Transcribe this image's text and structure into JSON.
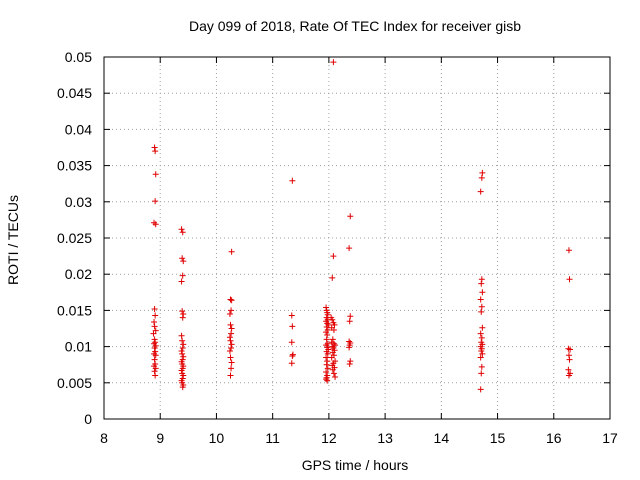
{
  "chart_data": {
    "type": "scatter",
    "title": "Day 099 of 2018, Rate Of TEC Index for receiver gisb",
    "xlabel": "GPS time / hours",
    "ylabel": "ROTI / TECUs",
    "xlim": [
      8,
      17
    ],
    "ylim": [
      0,
      0.05
    ],
    "grid": true,
    "x_ticks": [
      8,
      9,
      10,
      11,
      12,
      13,
      14,
      15,
      16,
      17
    ],
    "x_tick_labels": [
      "8",
      "9",
      "10",
      "11",
      "12",
      "13",
      "14",
      "15",
      "16",
      "17"
    ],
    "y_ticks": [
      0,
      0.005,
      0.01,
      0.015,
      0.02,
      0.025,
      0.03,
      0.035,
      0.04,
      0.045,
      0.05
    ],
    "y_tick_labels": [
      "0",
      "0.005",
      "0.01",
      "0.015",
      "0.02",
      "0.025",
      "0.03",
      "0.035",
      "0.04",
      "0.045",
      "0.05"
    ],
    "marker": "+",
    "color": "#e00000",
    "points": [
      [
        8.9,
        0.0375
      ],
      [
        8.91,
        0.037
      ],
      [
        8.92,
        0.0338
      ],
      [
        8.91,
        0.0301
      ],
      [
        8.89,
        0.0271
      ],
      [
        8.92,
        0.0269
      ],
      [
        8.9,
        0.0152
      ],
      [
        8.91,
        0.0143
      ],
      [
        8.89,
        0.0134
      ],
      [
        8.9,
        0.0128
      ],
      [
        8.92,
        0.0122
      ],
      [
        8.88,
        0.0118
      ],
      [
        8.9,
        0.011
      ],
      [
        8.91,
        0.0106
      ],
      [
        8.89,
        0.0104
      ],
      [
        8.92,
        0.0101
      ],
      [
        8.9,
        0.0098
      ],
      [
        8.91,
        0.0093
      ],
      [
        8.89,
        0.009
      ],
      [
        8.92,
        0.0088
      ],
      [
        8.9,
        0.0082
      ],
      [
        8.91,
        0.0076
      ],
      [
        8.89,
        0.0073
      ],
      [
        8.92,
        0.007
      ],
      [
        8.9,
        0.0066
      ],
      [
        8.91,
        0.006
      ],
      [
        9.38,
        0.0262
      ],
      [
        9.4,
        0.0258
      ],
      [
        9.39,
        0.0222
      ],
      [
        9.41,
        0.0218
      ],
      [
        9.4,
        0.0198
      ],
      [
        9.38,
        0.019
      ],
      [
        9.39,
        0.0149
      ],
      [
        9.41,
        0.0145
      ],
      [
        9.4,
        0.014
      ],
      [
        9.38,
        0.0115
      ],
      [
        9.39,
        0.0108
      ],
      [
        9.41,
        0.0103
      ],
      [
        9.4,
        0.0098
      ],
      [
        9.38,
        0.0094
      ],
      [
        9.39,
        0.009
      ],
      [
        9.41,
        0.0086
      ],
      [
        9.4,
        0.0082
      ],
      [
        9.38,
        0.0079
      ],
      [
        9.39,
        0.0076
      ],
      [
        9.41,
        0.0073
      ],
      [
        9.4,
        0.007
      ],
      [
        9.38,
        0.0067
      ],
      [
        9.39,
        0.0063
      ],
      [
        9.41,
        0.006
      ],
      [
        9.4,
        0.0056
      ],
      [
        9.38,
        0.0053
      ],
      [
        9.39,
        0.005
      ],
      [
        9.41,
        0.0047
      ],
      [
        9.4,
        0.0044
      ],
      [
        10.27,
        0.0231
      ],
      [
        10.25,
        0.0165
      ],
      [
        10.27,
        0.0164
      ],
      [
        10.26,
        0.015
      ],
      [
        10.24,
        0.0145
      ],
      [
        10.25,
        0.013
      ],
      [
        10.27,
        0.0125
      ],
      [
        10.26,
        0.0118
      ],
      [
        10.24,
        0.0113
      ],
      [
        10.25,
        0.0108
      ],
      [
        10.27,
        0.0103
      ],
      [
        10.26,
        0.0098
      ],
      [
        10.24,
        0.0094
      ],
      [
        10.25,
        0.0085
      ],
      [
        10.27,
        0.0078
      ],
      [
        10.26,
        0.007
      ],
      [
        10.25,
        0.006
      ],
      [
        11.35,
        0.0329
      ],
      [
        11.34,
        0.0143
      ],
      [
        11.35,
        0.0128
      ],
      [
        11.34,
        0.0106
      ],
      [
        11.36,
        0.0089
      ],
      [
        11.35,
        0.0087
      ],
      [
        11.34,
        0.0077
      ],
      [
        12.08,
        0.0493
      ],
      [
        12.08,
        0.0225
      ],
      [
        12.06,
        0.0195
      ],
      [
        11.95,
        0.0154
      ],
      [
        11.96,
        0.015
      ],
      [
        11.97,
        0.0147
      ],
      [
        11.98,
        0.0144
      ],
      [
        11.96,
        0.014
      ],
      [
        11.98,
        0.0137
      ],
      [
        11.95,
        0.0135
      ],
      [
        11.97,
        0.0132
      ],
      [
        11.99,
        0.013
      ],
      [
        11.96,
        0.0127
      ],
      [
        11.98,
        0.0123
      ],
      [
        11.95,
        0.012
      ],
      [
        11.97,
        0.0116
      ],
      [
        11.96,
        0.011
      ],
      [
        11.98,
        0.0104
      ],
      [
        11.95,
        0.0102
      ],
      [
        11.97,
        0.0099
      ],
      [
        11.99,
        0.0096
      ],
      [
        11.96,
        0.0093
      ],
      [
        11.98,
        0.009
      ],
      [
        11.95,
        0.0085
      ],
      [
        11.97,
        0.008
      ],
      [
        11.96,
        0.0075
      ],
      [
        11.98,
        0.007
      ],
      [
        11.95,
        0.0065
      ],
      [
        11.97,
        0.006
      ],
      [
        11.96,
        0.0057
      ],
      [
        11.95,
        0.0055
      ],
      [
        11.97,
        0.0053
      ],
      [
        12.04,
        0.014
      ],
      [
        12.06,
        0.0137
      ],
      [
        12.08,
        0.0133
      ],
      [
        12.1,
        0.013
      ],
      [
        12.05,
        0.0126
      ],
      [
        12.09,
        0.0123
      ],
      [
        12.07,
        0.011
      ],
      [
        12.05,
        0.0106
      ],
      [
        12.09,
        0.0104
      ],
      [
        12.11,
        0.0102
      ],
      [
        12.06,
        0.01
      ],
      [
        12.08,
        0.0098
      ],
      [
        12.1,
        0.0095
      ],
      [
        12.07,
        0.0092
      ],
      [
        12.09,
        0.0088
      ],
      [
        12.05,
        0.0085
      ],
      [
        12.11,
        0.008
      ],
      [
        12.08,
        0.0077
      ],
      [
        12.06,
        0.0074
      ],
      [
        12.1,
        0.0071
      ],
      [
        12.07,
        0.0068
      ],
      [
        12.09,
        0.0063
      ],
      [
        12.11,
        0.0058
      ],
      [
        12.38,
        0.028
      ],
      [
        12.36,
        0.0236
      ],
      [
        12.38,
        0.0142
      ],
      [
        12.37,
        0.0135
      ],
      [
        12.36,
        0.0107
      ],
      [
        12.38,
        0.0105
      ],
      [
        12.37,
        0.0102
      ],
      [
        12.36,
        0.0099
      ],
      [
        12.38,
        0.008
      ],
      [
        12.37,
        0.0076
      ],
      [
        14.73,
        0.034
      ],
      [
        14.72,
        0.0333
      ],
      [
        14.7,
        0.0314
      ],
      [
        14.72,
        0.0193
      ],
      [
        14.71,
        0.0187
      ],
      [
        14.73,
        0.0175
      ],
      [
        14.7,
        0.0165
      ],
      [
        14.72,
        0.0155
      ],
      [
        14.71,
        0.0148
      ],
      [
        14.73,
        0.0126
      ],
      [
        14.7,
        0.0118
      ],
      [
        14.72,
        0.0112
      ],
      [
        14.71,
        0.0106
      ],
      [
        14.73,
        0.0103
      ],
      [
        14.7,
        0.01
      ],
      [
        14.72,
        0.0097
      ],
      [
        14.71,
        0.0094
      ],
      [
        14.73,
        0.009
      ],
      [
        14.7,
        0.0085
      ],
      [
        14.72,
        0.0072
      ],
      [
        14.71,
        0.0063
      ],
      [
        14.7,
        0.0041
      ],
      [
        16.27,
        0.0233
      ],
      [
        16.28,
        0.0193
      ],
      [
        16.26,
        0.0097
      ],
      [
        16.29,
        0.0096
      ],
      [
        16.27,
        0.0088
      ],
      [
        16.28,
        0.0082
      ],
      [
        16.26,
        0.0068
      ],
      [
        16.29,
        0.0063
      ],
      [
        16.27,
        0.006
      ]
    ]
  }
}
